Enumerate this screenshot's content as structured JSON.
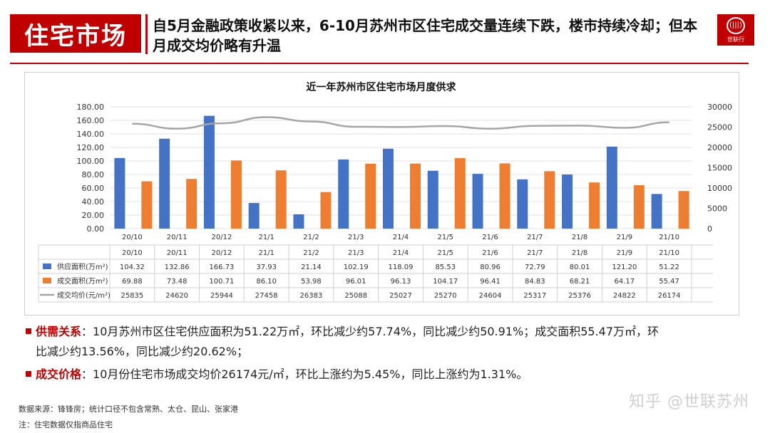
{
  "header": {
    "section_title": "住宅市场",
    "headline": "自5月金融政策收紧以来，6-10月苏州市区住宅成交量连续下跌，楼市持续冷却；但本月成交均价略有升温",
    "logo_text": "世联行",
    "logo_mark": "(|||)"
  },
  "chart_data": {
    "type": "bar",
    "title": "近一年苏州市区住宅市场月度供求",
    "categories": [
      "20/10",
      "20/11",
      "20/12",
      "21/1",
      "21/2",
      "21/3",
      "21/4",
      "21/5",
      "21/6",
      "21/7",
      "21/8",
      "21/9",
      "21/10"
    ],
    "series": [
      {
        "name": "供应面积(万m²)",
        "kind": "bar",
        "axis": "left",
        "color": "#4472c4",
        "values": [
          104.32,
          132.86,
          166.73,
          37.93,
          21.14,
          102.19,
          118.09,
          85.53,
          80.96,
          72.79,
          80.01,
          121.2,
          51.22
        ]
      },
      {
        "name": "成交面积(万m²)",
        "kind": "bar",
        "axis": "left",
        "color": "#ed7d31",
        "values": [
          69.88,
          73.48,
          100.71,
          86.1,
          53.98,
          96.01,
          96.13,
          104.17,
          96.41,
          84.83,
          68.21,
          64.17,
          55.47
        ]
      },
      {
        "name": "成交均价(元/m²)",
        "kind": "line",
        "axis": "right",
        "color": "#a5a5a5",
        "values": [
          25835,
          24620,
          25944,
          27458,
          26383,
          25088,
          25027,
          25270,
          24604,
          25317,
          25376,
          24822,
          26174
        ]
      }
    ],
    "ylim_left": [
      0,
      180
    ],
    "ylim_right": [
      0,
      30000
    ],
    "yticks_left": [
      "0.00",
      "20.00",
      "40.00",
      "60.00",
      "80.00",
      "100.00",
      "120.00",
      "140.00",
      "160.00",
      "180.00"
    ],
    "yticks_right": [
      "0",
      "5000",
      "10000",
      "15000",
      "20000",
      "25000",
      "30000"
    ],
    "table": {
      "rows": [
        [
          "104.32",
          "132.86",
          "166.73",
          "37.93",
          "21.14",
          "102.19",
          "118.09",
          "85.53",
          "80.96",
          "72.79",
          "80.01",
          "121.20",
          "51.22"
        ],
        [
          "69.88",
          "73.48",
          "100.71",
          "86.10",
          "53.98",
          "96.01",
          "96.13",
          "104.17",
          "96.41",
          "84.83",
          "68.21",
          "64.17",
          "55.47"
        ],
        [
          "25835",
          "24620",
          "25944",
          "27458",
          "26383",
          "25088",
          "25027",
          "25270",
          "24604",
          "25317",
          "25376",
          "24822",
          "26174"
        ]
      ]
    },
    "grid": true,
    "legend": "data-table"
  },
  "bullets": [
    {
      "label": "供需关系",
      "text": "：10月苏州市区住宅供应面积为51.22万㎡，环比减少约57.74%，同比减少约50.91%；成交面积55.47万㎡，环",
      "text2": "比减少约13.56%，同比减少约20.62%；"
    },
    {
      "label": "成交价格",
      "text": "：10月份住宅市场成交均价26174元/㎡，环比上涨约为5.45%，同比上涨约为1.31%。"
    }
  ],
  "footnotes": {
    "source": "数据来源：锋锋房；统计口径不包含常熟、太仓、昆山、张家港",
    "note": "注：住宅数据仅指商品住宅"
  },
  "watermark": "知乎 @世联苏州"
}
